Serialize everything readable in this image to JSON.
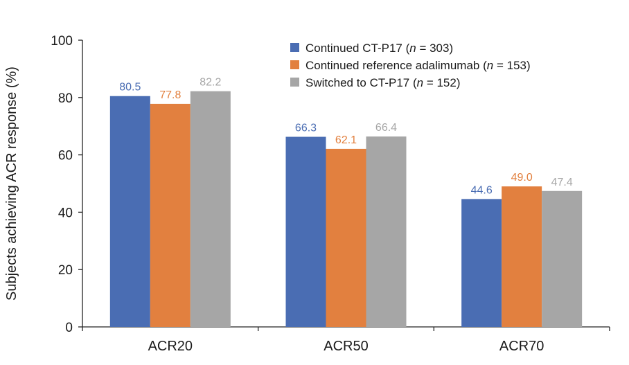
{
  "chart_data": {
    "type": "bar",
    "title": "",
    "xlabel": "",
    "ylabel": "Subjects achieving ACR response (%)",
    "ylim": [
      0,
      100
    ],
    "yticks": [
      0,
      20,
      40,
      60,
      80,
      100
    ],
    "grid": false,
    "legend_position": "top-right",
    "categories": [
      "ACR20",
      "ACR50",
      "ACR70"
    ],
    "series": [
      {
        "name": "Continued CT-P17 (n = 303)",
        "name_parts": [
          {
            "text": "Continued CT-P17 (",
            "italic": false
          },
          {
            "text": "n",
            "italic": true
          },
          {
            "text": " = 303)",
            "italic": false
          }
        ],
        "color": "#4a6db3",
        "values": [
          80.5,
          66.3,
          44.6
        ],
        "labels": [
          "80.5",
          "66.3",
          "44.6"
        ]
      },
      {
        "name": "Continued reference adalimumab (n = 153)",
        "name_parts": [
          {
            "text": "Continued reference adalimumab (",
            "italic": false
          },
          {
            "text": "n",
            "italic": true
          },
          {
            "text": " = 153)",
            "italic": false
          }
        ],
        "color": "#e2803f",
        "values": [
          77.8,
          62.1,
          49.0
        ],
        "labels": [
          "77.8",
          "62.1",
          "49.0"
        ]
      },
      {
        "name": "Switched to CT-P17 (n = 152)",
        "name_parts": [
          {
            "text": "Switched to CT-P17 (",
            "italic": false
          },
          {
            "text": "n",
            "italic": true
          },
          {
            "text": " = 152)",
            "italic": false
          }
        ],
        "color": "#a6a6a6",
        "values": [
          82.2,
          66.4,
          47.4
        ],
        "labels": [
          "82.2",
          "66.4",
          "47.4"
        ]
      }
    ]
  }
}
